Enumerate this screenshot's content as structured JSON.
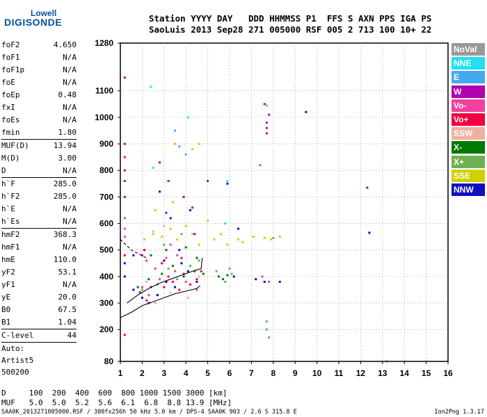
{
  "logo": {
    "line1": "Lowell",
    "line2": "DIGISONDE"
  },
  "header": {
    "line1": "Station YYYY DAY   DDD HHMMSS P1  FFS S AXN PPS IGA PS",
    "line2": "SaoLuis 2013 Sep28 271 005000 RSF 005 2 713 100 10+ 22"
  },
  "params_top": [
    {
      "name": "foF2",
      "value": "4.650"
    },
    {
      "name": "foF1",
      "value": "N/A"
    },
    {
      "name": "foF1p",
      "value": "N/A"
    },
    {
      "name": "foE",
      "value": "N/A"
    },
    {
      "name": "foEp",
      "value": "0.48"
    },
    {
      "name": "fxI",
      "value": "N/A"
    },
    {
      "name": "foEs",
      "value": "N/A"
    },
    {
      "name": "fmin",
      "value": "1.80"
    }
  ],
  "params_muf": [
    {
      "name": "MUF(D)",
      "value": "13.94"
    },
    {
      "name": "M(D)",
      "value": "3.00"
    },
    {
      "name": "D",
      "value": "N/A"
    }
  ],
  "params_h": [
    {
      "name": "h`F",
      "value": "285.0"
    },
    {
      "name": "h`F2",
      "value": "285.0"
    },
    {
      "name": "h`E",
      "value": "N/A"
    },
    {
      "name": "h`Es",
      "value": "N/A"
    }
  ],
  "params_hm": [
    {
      "name": "hmF2",
      "value": "368.3"
    },
    {
      "name": "hmF1",
      "value": "N/A"
    },
    {
      "name": "hmE",
      "value": "110.0"
    },
    {
      "name": "yF2",
      "value": "53.1"
    },
    {
      "name": "yF1",
      "value": "N/A"
    },
    {
      "name": "yE",
      "value": "20.0"
    },
    {
      "name": "B0",
      "value": "67.5"
    },
    {
      "name": "B1",
      "value": "1.04"
    }
  ],
  "clevel": {
    "name": "C-level",
    "value": "44"
  },
  "auto": [
    "Auto:",
    "Artist5",
    "500200"
  ],
  "legend": [
    {
      "label": "NoVal",
      "color": "#999999"
    },
    {
      "label": "NNE",
      "color": "#22e0f0"
    },
    {
      "label": "E",
      "color": "#44aaf0"
    },
    {
      "label": "W",
      "color": "#b000b0"
    },
    {
      "label": "Vo-",
      "color": "#f040a0"
    },
    {
      "label": "Vo+",
      "color": "#f00040"
    },
    {
      "label": "SSW",
      "color": "#f0b0a0"
    },
    {
      "label": "X-",
      "color": "#007a00"
    },
    {
      "label": "X+",
      "color": "#70b050"
    },
    {
      "label": "SSE",
      "color": "#d0d000"
    },
    {
      "label": "NNW",
      "color": "#1010c0"
    }
  ],
  "footer": {
    "line1": "D     100  200  400  600  800 1000 1500 3000 [km]",
    "line2": "MUF   5.0  5.0  5.2  5.6  6.1  6.8  8.8 13.9 [MHz]",
    "line3": "SAA0K_2013271005000.RSF / 300fx256h 50 kHz 5.0 km / DPS-4 SAA0K 903 / 2.6 S 315.8 E",
    "version": "Ion2Png 1.3.17"
  },
  "chart_data": {
    "type": "scatter",
    "xlim": [
      1,
      16
    ],
    "ylim": [
      80,
      1280
    ],
    "x_ticks": [
      1,
      2,
      3,
      4,
      5,
      6,
      7,
      8,
      9,
      10,
      11,
      12,
      13,
      14,
      15,
      16
    ],
    "y_ticks": [
      80,
      200,
      300,
      400,
      500,
      600,
      700,
      800,
      900,
      1000,
      1100,
      1280
    ],
    "grid": true,
    "series": [
      {
        "name": "NoVal",
        "points": []
      },
      {
        "name": "NNE",
        "points": [
          [
            2.4,
            1115
          ],
          [
            4.1,
            1000
          ],
          [
            7.7,
            1045
          ],
          [
            2.5,
            810
          ],
          [
            5.9,
            760
          ],
          [
            5.8,
            600
          ]
        ]
      },
      {
        "name": "E",
        "points": [
          [
            3.5,
            950
          ],
          [
            3.7,
            890
          ],
          [
            4.0,
            860
          ],
          [
            6.0,
            430
          ],
          [
            7.7,
            230
          ],
          [
            7.7,
            200
          ],
          [
            7.8,
            170
          ]
        ]
      },
      {
        "name": "W",
        "points": [
          [
            1.2,
            1150
          ],
          [
            1.2,
            900
          ],
          [
            1.2,
            760
          ],
          [
            1.2,
            700
          ],
          [
            2.8,
            830
          ],
          [
            3.2,
            760
          ],
          [
            3.9,
            700
          ],
          [
            4.3,
            660
          ],
          [
            7.7,
            980
          ],
          [
            7.7,
            960
          ],
          [
            7.8,
            1010
          ],
          [
            2.0,
            480
          ],
          [
            3.1,
            640
          ],
          [
            4.4,
            560
          ],
          [
            5.0,
            760
          ]
        ]
      },
      {
        "name": "Vo-",
        "points": [
          [
            1.2,
            620
          ],
          [
            1.2,
            580
          ],
          [
            1.2,
            550
          ],
          [
            2.2,
            460
          ],
          [
            2.6,
            430
          ],
          [
            3.1,
            470
          ],
          [
            3.3,
            520
          ],
          [
            3.6,
            480
          ],
          [
            2.0,
            360
          ],
          [
            2.3,
            330
          ],
          [
            2.8,
            390
          ],
          [
            3.5,
            420
          ],
          [
            4.0,
            380
          ],
          [
            4.5,
            350
          ],
          [
            7.4,
            820
          ],
          [
            7.8,
            380
          ],
          [
            7.5,
            400
          ]
        ]
      },
      {
        "name": "Vo+",
        "points": [
          [
            1.2,
            850
          ],
          [
            1.2,
            800
          ],
          [
            1.2,
            480
          ],
          [
            1.9,
            340
          ],
          [
            2.2,
            310
          ],
          [
            2.4,
            360
          ],
          [
            2.7,
            330
          ],
          [
            3.0,
            360
          ],
          [
            3.2,
            400
          ],
          [
            3.4,
            380
          ],
          [
            3.7,
            350
          ],
          [
            3.9,
            410
          ],
          [
            4.2,
            370
          ],
          [
            4.5,
            390
          ],
          [
            4.7,
            420
          ],
          [
            1.2,
            180
          ],
          [
            7.7,
            940
          ],
          [
            7.6,
            1050
          ],
          [
            2.1,
            500
          ],
          [
            2.9,
            450
          ],
          [
            3.8,
            470
          ]
        ]
      },
      {
        "name": "SSW",
        "points": [
          [
            2.2,
            380
          ],
          [
            2.6,
            300
          ],
          [
            3.3,
            340
          ],
          [
            4.1,
            320
          ],
          [
            4.6,
            400
          ],
          [
            3.0,
            590
          ],
          [
            2.5,
            570
          ]
        ]
      },
      {
        "name": "X-",
        "points": [
          [
            1.8,
            360
          ],
          [
            2.3,
            390
          ],
          [
            2.9,
            410
          ],
          [
            3.4,
            440
          ],
          [
            3.9,
            400
          ],
          [
            4.4,
            420
          ],
          [
            4.8,
            410
          ],
          [
            5.5,
            400
          ],
          [
            5.7,
            390
          ],
          [
            5.9,
            405
          ],
          [
            2.4,
            480
          ],
          [
            3.1,
            500
          ],
          [
            4.0,
            510
          ],
          [
            4.5,
            470
          ],
          [
            12.3,
            735
          ],
          [
            13.2,
            80
          ],
          [
            12.4,
            565
          ]
        ]
      },
      {
        "name": "X+",
        "points": [
          [
            2.0,
            350
          ],
          [
            2.7,
            370
          ],
          [
            3.2,
            430
          ],
          [
            3.6,
            390
          ],
          [
            4.2,
            440
          ],
          [
            4.6,
            460
          ],
          [
            5.4,
            420
          ],
          [
            5.8,
            380
          ],
          [
            6.1,
            410
          ],
          [
            3.0,
            520
          ],
          [
            3.8,
            560
          ],
          [
            8.0,
            545
          ]
        ]
      },
      {
        "name": "SSE",
        "points": [
          [
            2.1,
            540
          ],
          [
            2.5,
            560
          ],
          [
            2.9,
            550
          ],
          [
            3.3,
            580
          ],
          [
            3.6,
            540
          ],
          [
            4.0,
            590
          ],
          [
            4.3,
            560
          ],
          [
            4.6,
            520
          ],
          [
            5.3,
            540
          ],
          [
            5.6,
            560
          ],
          [
            5.9,
            520
          ],
          [
            6.4,
            540
          ],
          [
            6.6,
            530
          ],
          [
            7.1,
            550
          ],
          [
            7.6,
            545
          ],
          [
            7.9,
            540
          ],
          [
            8.3,
            550
          ],
          [
            3.5,
            900
          ],
          [
            4.3,
            880
          ],
          [
            4.6,
            900
          ],
          [
            2.6,
            650
          ],
          [
            3.4,
            680
          ],
          [
            5.0,
            610
          ]
        ]
      },
      {
        "name": "NNW",
        "points": [
          [
            1.2,
            400
          ],
          [
            1.6,
            350
          ],
          [
            2.0,
            320
          ],
          [
            2.3,
            300
          ],
          [
            2.7,
            330
          ],
          [
            3.1,
            380
          ],
          [
            3.5,
            360
          ],
          [
            3.8,
            450
          ],
          [
            4.1,
            420
          ],
          [
            4.5,
            380
          ],
          [
            6.4,
            580
          ],
          [
            7.2,
            390
          ],
          [
            7.6,
            380
          ],
          [
            8.3,
            380
          ],
          [
            9.5,
            1020
          ],
          [
            12.4,
            565
          ],
          [
            5.9,
            750
          ],
          [
            6.2,
            400
          ],
          [
            1.2,
            450
          ],
          [
            1.6,
            480
          ],
          [
            2.8,
            720
          ],
          [
            3.3,
            620
          ],
          [
            4.2,
            650
          ],
          [
            3.0,
            460
          ],
          [
            3.7,
            500
          ]
        ]
      }
    ],
    "traces": [
      {
        "name": "profile",
        "points": [
          [
            1.0,
            245
          ],
          [
            1.5,
            265
          ],
          [
            2.0,
            290
          ],
          [
            2.5,
            305
          ],
          [
            3.0,
            320
          ],
          [
            3.5,
            335
          ],
          [
            4.0,
            345
          ],
          [
            4.5,
            355
          ],
          [
            4.65,
            365
          ]
        ]
      },
      {
        "name": "X-trace",
        "points": [
          [
            1.3,
            300
          ],
          [
            1.8,
            330
          ],
          [
            2.3,
            355
          ],
          [
            2.8,
            375
          ],
          [
            3.3,
            390
          ],
          [
            3.8,
            405
          ],
          [
            4.3,
            420
          ],
          [
            4.7,
            430
          ],
          [
            4.75,
            470
          ]
        ]
      },
      {
        "name": "upper-dashed",
        "points": [
          [
            1.0,
            540
          ],
          [
            1.5,
            500
          ],
          [
            2.2,
            470
          ]
        ]
      }
    ]
  }
}
